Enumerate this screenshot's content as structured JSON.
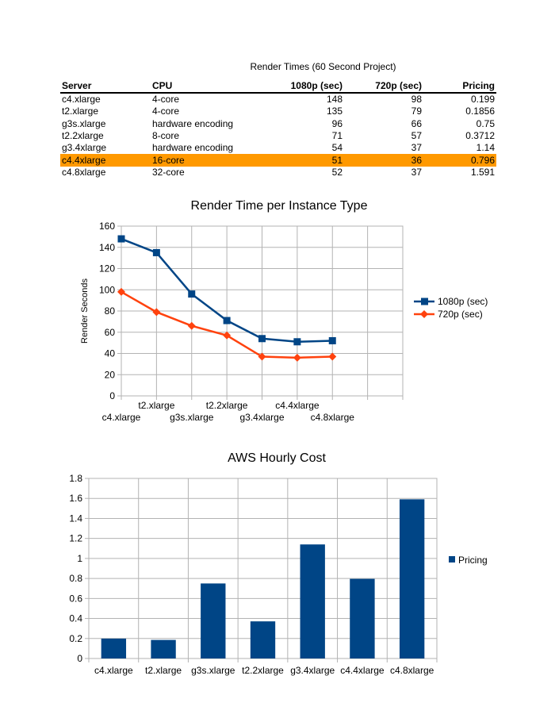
{
  "table": {
    "caption": "Render Times (60 Second Project)",
    "headers": [
      "Server",
      "CPU",
      "1080p (sec)",
      "720p (sec)",
      "Pricing"
    ],
    "rows": [
      {
        "server": "c4.xlarge",
        "cpu": "4-core",
        "p1080": "148",
        "p720": "98",
        "pricing": "0.199",
        "highlight": false
      },
      {
        "server": "t2.xlarge",
        "cpu": "4-core",
        "p1080": "135",
        "p720": "79",
        "pricing": "0.1856",
        "highlight": false
      },
      {
        "server": "g3s.xlarge",
        "cpu": "hardware encoding",
        "p1080": "96",
        "p720": "66",
        "pricing": "0.75",
        "highlight": false
      },
      {
        "server": "t2.2xlarge",
        "cpu": "8-core",
        "p1080": "71",
        "p720": "57",
        "pricing": "0.3712",
        "highlight": false
      },
      {
        "server": "g3.4xlarge",
        "cpu": "hardware encoding",
        "p1080": "54",
        "p720": "37",
        "pricing": "1.14",
        "highlight": false
      },
      {
        "server": "c4.4xlarge",
        "cpu": "16-core",
        "p1080": "51",
        "p720": "36",
        "pricing": "0.796",
        "highlight": true
      },
      {
        "server": "c4.8xlarge",
        "cpu": "32-core",
        "p1080": "52",
        "p720": "37",
        "pricing": "1.591",
        "highlight": false
      }
    ],
    "highlight_color": "#ff9900"
  },
  "chart_data": [
    {
      "type": "line",
      "title": "Render Time per Instance Type",
      "xlabel": "",
      "ylabel": "Render Seconds",
      "categories": [
        "c4.xlarge",
        "t2.xlarge",
        "g3s.xlarge",
        "t2.2xlarge",
        "g3.4xlarge",
        "c4.4xlarge",
        "c4.8xlarge"
      ],
      "ylim": [
        0,
        160
      ],
      "yticks": [
        0,
        20,
        40,
        60,
        80,
        100,
        120,
        140,
        160
      ],
      "grid": true,
      "legend": "right",
      "series": [
        {
          "name": "1080p (sec)",
          "values": [
            148,
            135,
            96,
            71,
            54,
            51,
            52
          ],
          "color": "#004586",
          "marker": "square"
        },
        {
          "name": "720p (sec)",
          "values": [
            98,
            79,
            66,
            57,
            37,
            36,
            37
          ],
          "color": "#ff420e",
          "marker": "diamond"
        }
      ]
    },
    {
      "type": "bar",
      "title": "AWS Hourly Cost",
      "xlabel": "",
      "ylabel": "",
      "categories": [
        "c4.xlarge",
        "t2.xlarge",
        "g3s.xlarge",
        "t2.2xlarge",
        "g3.4xlarge",
        "c4.4xlarge",
        "c4.8xlarge"
      ],
      "ylim": [
        0,
        1.8
      ],
      "yticks": [
        "0",
        "0.2",
        "0.4",
        "0.6",
        "0.8",
        "1",
        "1.2",
        "1.4",
        "1.6",
        "1.8"
      ],
      "grid": true,
      "legend": "right",
      "series": [
        {
          "name": "Pricing",
          "values": [
            0.199,
            0.1856,
            0.75,
            0.3712,
            1.14,
            0.796,
            1.591
          ],
          "color": "#004586"
        }
      ]
    }
  ]
}
